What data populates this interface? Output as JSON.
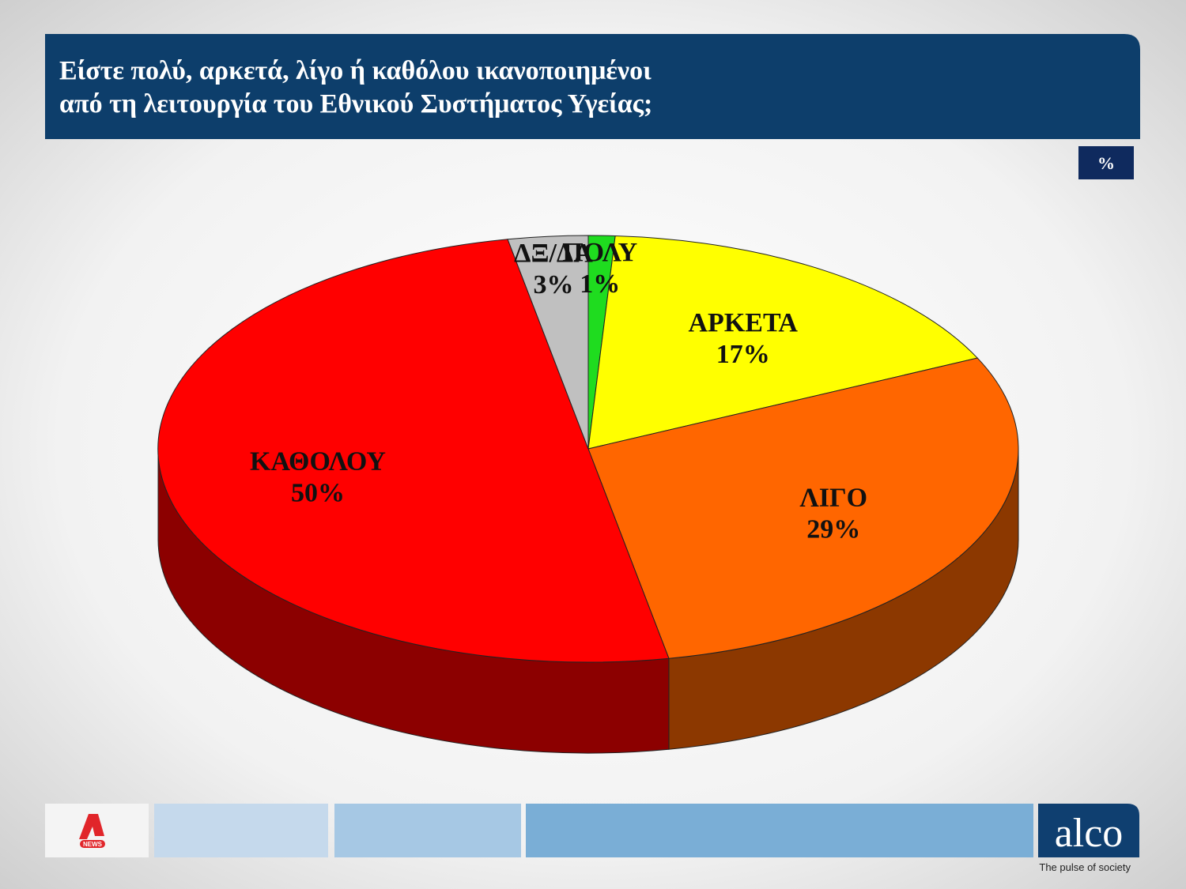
{
  "chart_data": {
    "type": "pie3d",
    "title": [
      "Είστε πολύ, αρκετά, λίγο ή καθόλου ικανοποιημένοι",
      "από τη λειτουργία του Εθνικού Συστήματος Υγείας;"
    ],
    "unit_label": "%",
    "categories": [
      "ΠΟΛΥ",
      "ΑΡΚΕΤΑ",
      "ΛΙΓΟ",
      "ΚΑΘΟΛΟΥ",
      "ΔΞ/ΔΑ"
    ],
    "values": [
      1,
      17,
      29,
      50,
      3
    ],
    "value_labels": [
      "1%",
      "17%",
      "29%",
      "50%",
      "3%"
    ],
    "colors": [
      "#1fdc1f",
      "#ffff00",
      "#ff6600",
      "#ff0000",
      "#c0c0c0"
    ]
  },
  "footer": {
    "brand": "alco",
    "tagline": "The pulse of society",
    "news_label": "NEWS"
  }
}
